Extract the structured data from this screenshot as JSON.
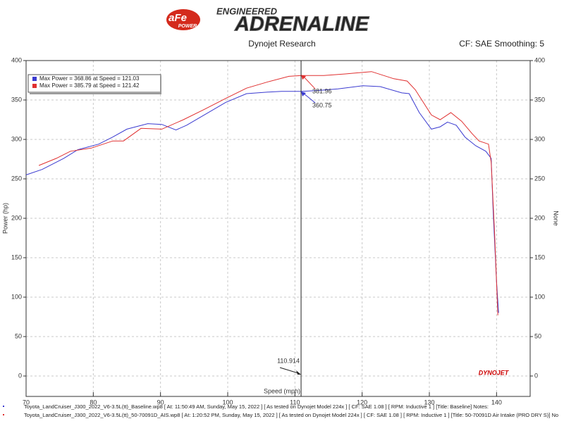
{
  "header": {
    "brand_top": "ENGINEERED",
    "brand_main": "ADRENALINE",
    "logo": "aFe",
    "logo_sub": "POWER"
  },
  "chart_data": {
    "type": "line",
    "title": "Dynojet Research",
    "subtitle": "CF: SAE Smoothing: 5",
    "x_label": "Speed (mph)",
    "y_label": "Power (hp)",
    "y2_label": "None",
    "xlim": [
      70,
      145
    ],
    "xticks": [
      70,
      80,
      90,
      100,
      110,
      120,
      130,
      140
    ],
    "ylim": [
      0,
      400
    ],
    "yticks": [
      0,
      50,
      100,
      150,
      200,
      250,
      300,
      350,
      400
    ],
    "y2lim": [
      0,
      400
    ],
    "y2ticks": [
      0,
      50,
      100,
      150,
      200,
      250,
      300,
      350,
      400
    ],
    "grid": true,
    "legend_position": "upper left",
    "legend_entries": [
      "Max Power = 368.86 at Speed = 121.03",
      "Max Power = 385.79 at Speed = 121.42"
    ],
    "series": [
      {
        "name": "Baseline",
        "color": "#3a3ad0",
        "x": [
          70,
          72.4,
          75.6,
          77.7,
          80.8,
          82.9,
          85,
          88.1,
          90.2,
          92.3,
          93.9,
          96.5,
          99.7,
          102.8,
          106,
          108,
          111,
          113.3,
          116.4,
          120.1,
          122.7,
          125.9,
          127,
          128.5,
          130.3,
          131.6,
          132.7,
          134,
          135.3,
          136.9,
          138.4,
          139.2,
          139.5,
          140,
          140.3
        ],
        "values": [
          255,
          262,
          276,
          287,
          294,
          303,
          313,
          320,
          319,
          312,
          318,
          331,
          347,
          358,
          360,
          361,
          361,
          362,
          364,
          368,
          367,
          359,
          358,
          334,
          313,
          316,
          322,
          318,
          303,
          292,
          285,
          276,
          207,
          120,
          80
        ]
      },
      {
        "name": "AIS",
        "color": "#e03030",
        "x": [
          71.9,
          74.5,
          76.6,
          79.7,
          82.9,
          84.5,
          87.1,
          90.2,
          93.4,
          96.5,
          99.7,
          102.8,
          106,
          109.1,
          111,
          114.3,
          117.5,
          121.4,
          124.7,
          126.7,
          127.9,
          130.3,
          131.6,
          133.2,
          134.8,
          136.4,
          137.4,
          138.8,
          139.2,
          139.7,
          140.2
        ],
        "values": [
          267,
          276,
          285,
          289,
          298,
          298,
          314,
          313,
          325,
          338,
          352,
          365,
          373,
          380,
          381,
          381,
          383,
          386,
          377,
          374,
          363,
          331,
          325,
          334,
          323,
          307,
          298,
          294,
          271,
          182,
          77
        ]
      }
    ],
    "cursor": {
      "x": 110.914,
      "label": "110.914"
    },
    "annotations": [
      {
        "x": 110.914,
        "y": 381.96,
        "label": "381.96",
        "color": "#e03030"
      },
      {
        "x": 110.914,
        "y": 360.75,
        "label": "360.75",
        "color": "#3a3ad0"
      }
    ],
    "watermark": "DYNOJET"
  },
  "footer": {
    "lines": [
      "Toyota_LandCruiser_J300_2022_V6-3.5L(tt)_Baseline.wp8 [ At: 11:50:49 AM, Sunday, May 15, 2022 ] [ As tested on Dynojet Model 224x ] [ CF: SAE 1.08 ] [ RPM: Inductive 1 ] [Title: Baseline]  Notes:",
      "Toyota_LandCruiser_J300_2022_V6-3.5L(tt)_50-70091D_AIS.wp8 [ At: 1:20:52 PM, Sunday, May 15, 2022 ] [ As tested on Dynojet Model 224x ] [ CF: SAE 1.08 ] [ RPM: Inductive 1 ] [Title: 50-70091D Air Intake (PRO DRY S)]  No"
    ]
  }
}
